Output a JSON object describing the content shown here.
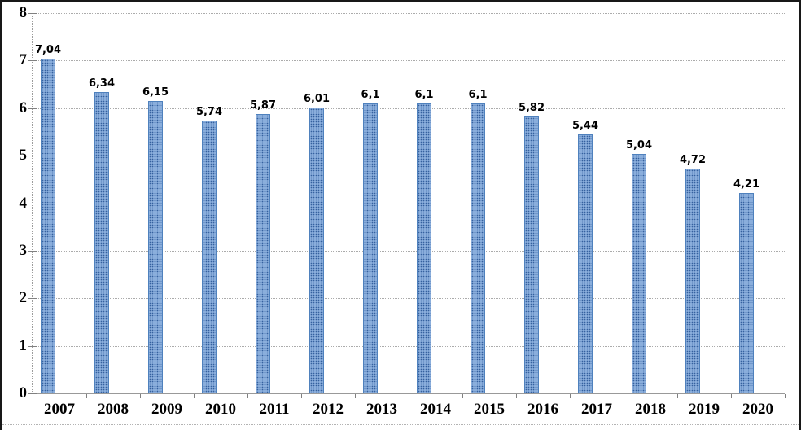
{
  "chart_data": {
    "type": "bar",
    "title": "",
    "xlabel": "",
    "ylabel": "",
    "categories": [
      "2007",
      "2008",
      "2009",
      "2010",
      "2011",
      "2012",
      "2013",
      "2014",
      "2015",
      "2016",
      "2017",
      "2018",
      "2019",
      "2020"
    ],
    "values": [
      7.04,
      6.34,
      6.15,
      5.74,
      5.87,
      6.01,
      6.1,
      6.1,
      6.1,
      5.82,
      5.44,
      5.04,
      4.72,
      4.21
    ],
    "value_labels": [
      "7,04",
      "6,34",
      "6,15",
      "5,74",
      "5,87",
      "6,01",
      "6,1",
      "6,1",
      "6,1",
      "5,82",
      "5,44",
      "5,04",
      "4,72",
      "4,21"
    ],
    "decimal_separator": ",",
    "ylim": [
      0,
      8
    ],
    "yticks": [
      0,
      1,
      2,
      3,
      4,
      5,
      6,
      7,
      8
    ],
    "grid": "horizontal-dotted",
    "legend": "none",
    "colors": {
      "bar_fill": "#8AAEDC",
      "bar_pattern_dots": "#35619F",
      "bar_border": "#4F81BD",
      "gridline": "#ABABAB",
      "axis_line": "#999999",
      "tick": "#808080",
      "label_text": "#000000",
      "frame_border": "#181818",
      "background": "#FFFFFF"
    }
  }
}
